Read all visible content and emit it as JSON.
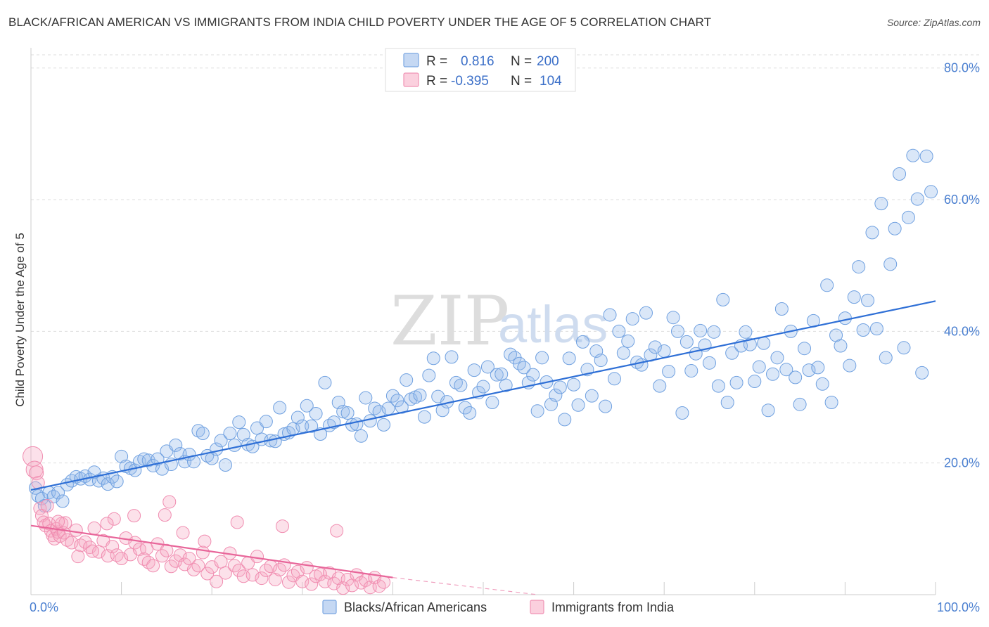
{
  "title": "BLACK/AFRICAN AMERICAN VS IMMIGRANTS FROM INDIA CHILD POVERTY UNDER THE AGE OF 5 CORRELATION CHART",
  "source": "Source: ZipAtlas.com",
  "watermark": {
    "zip": "ZIP",
    "atlas": "atlas"
  },
  "legend": {
    "rows": [
      {
        "r_label": "R =",
        "r_value": "0.816",
        "n_label": "N =",
        "n_value": "200",
        "color": "#6fa0e0"
      },
      {
        "r_label": "R =",
        "r_value": "-0.395",
        "n_label": "N =",
        "n_value": "104",
        "color": "#f08cb0"
      }
    ]
  },
  "chart_data": {
    "type": "scatter",
    "xlabel": "",
    "ylabel": "Child Poverty Under the Age of 5",
    "x_tick_labels": {
      "left": "0.0%",
      "right": "100.0%"
    },
    "y_tick_labels": [
      "20.0%",
      "40.0%",
      "60.0%",
      "80.0%"
    ],
    "y_ticks": [
      20,
      40,
      60,
      80
    ],
    "xlim": [
      0,
      100
    ],
    "ylim": [
      0,
      82
    ],
    "grid": true,
    "legend_position": "top-center",
    "series": [
      {
        "name": "Blacks/African Americans",
        "color": "#6fa0e0",
        "trend": {
          "x": [
            0,
            100
          ],
          "y": [
            15.9,
            44.6
          ]
        },
        "points": [
          [
            0.5,
            16.2
          ],
          [
            0.8,
            15.0
          ],
          [
            1.2,
            14.6
          ],
          [
            1.5,
            13.5
          ],
          [
            2.0,
            15.5
          ],
          [
            2.5,
            14.9
          ],
          [
            3.0,
            15.5
          ],
          [
            3.5,
            14.2
          ],
          [
            4.0,
            16.7
          ],
          [
            4.5,
            17.3
          ],
          [
            5.0,
            17.9
          ],
          [
            5.5,
            17.6
          ],
          [
            6.0,
            18.0
          ],
          [
            6.5,
            17.5
          ],
          [
            7.0,
            18.6
          ],
          [
            7.5,
            17.3
          ],
          [
            8.0,
            17.7
          ],
          [
            8.5,
            16.8
          ],
          [
            9.0,
            17.9
          ],
          [
            9.5,
            17.2
          ],
          [
            10.0,
            21.0
          ],
          [
            10.5,
            19.5
          ],
          [
            11.0,
            19.2
          ],
          [
            11.5,
            18.9
          ],
          [
            12.0,
            20.2
          ],
          [
            12.5,
            20.6
          ],
          [
            13.0,
            20.4
          ],
          [
            13.5,
            19.6
          ],
          [
            14.0,
            20.6
          ],
          [
            14.5,
            19.1
          ],
          [
            15.0,
            21.8
          ],
          [
            15.5,
            19.8
          ],
          [
            16.0,
            22.7
          ],
          [
            16.5,
            21.4
          ],
          [
            17.0,
            20.2
          ],
          [
            17.5,
            21.3
          ],
          [
            18.0,
            20.2
          ],
          [
            18.5,
            24.9
          ],
          [
            19.0,
            24.5
          ],
          [
            19.5,
            21.1
          ],
          [
            20.0,
            20.7
          ],
          [
            20.5,
            22.1
          ],
          [
            21.0,
            23.4
          ],
          [
            21.5,
            19.7
          ],
          [
            22.0,
            24.5
          ],
          [
            22.5,
            22.7
          ],
          [
            23.0,
            26.2
          ],
          [
            23.5,
            24.3
          ],
          [
            24.0,
            22.8
          ],
          [
            24.5,
            22.5
          ],
          [
            25.0,
            25.3
          ],
          [
            25.5,
            23.6
          ],
          [
            26.0,
            26.3
          ],
          [
            26.5,
            23.4
          ],
          [
            27.0,
            23.3
          ],
          [
            27.5,
            28.4
          ],
          [
            28.0,
            24.4
          ],
          [
            28.5,
            24.6
          ],
          [
            29.0,
            25.2
          ],
          [
            29.5,
            26.9
          ],
          [
            30.0,
            25.6
          ],
          [
            30.5,
            28.7
          ],
          [
            31.0,
            25.6
          ],
          [
            31.5,
            27.5
          ],
          [
            32.0,
            24.4
          ],
          [
            32.5,
            32.2
          ],
          [
            33.0,
            25.7
          ],
          [
            33.5,
            26.2
          ],
          [
            34.0,
            29.2
          ],
          [
            34.5,
            27.8
          ],
          [
            35.0,
            27.6
          ],
          [
            35.5,
            25.8
          ],
          [
            36.0,
            25.9
          ],
          [
            36.5,
            24.1
          ],
          [
            37.0,
            29.9
          ],
          [
            37.5,
            26.4
          ],
          [
            38.0,
            28.3
          ],
          [
            38.5,
            27.8
          ],
          [
            39.0,
            25.8
          ],
          [
            39.5,
            28.3
          ],
          [
            40.0,
            30.2
          ],
          [
            40.5,
            29.5
          ],
          [
            41.0,
            28.5
          ],
          [
            41.5,
            32.6
          ],
          [
            42.0,
            29.7
          ],
          [
            42.5,
            30.0
          ],
          [
            43.0,
            30.3
          ],
          [
            43.5,
            27.0
          ],
          [
            44.0,
            33.3
          ],
          [
            44.5,
            35.9
          ],
          [
            45.0,
            30.1
          ],
          [
            45.5,
            28.0
          ],
          [
            46.0,
            29.3
          ],
          [
            46.5,
            36.1
          ],
          [
            47.0,
            32.2
          ],
          [
            47.5,
            31.8
          ],
          [
            48.0,
            28.4
          ],
          [
            48.5,
            27.6
          ],
          [
            49.0,
            34.1
          ],
          [
            49.5,
            30.7
          ],
          [
            50.0,
            31.6
          ],
          [
            50.5,
            34.6
          ],
          [
            51.0,
            29.2
          ],
          [
            51.5,
            33.4
          ],
          [
            52.0,
            33.5
          ],
          [
            52.5,
            31.8
          ],
          [
            53.0,
            36.5
          ],
          [
            53.5,
            36.0
          ],
          [
            54.0,
            35.1
          ],
          [
            54.5,
            34.5
          ],
          [
            55.0,
            32.2
          ],
          [
            55.5,
            33.4
          ],
          [
            56.0,
            27.9
          ],
          [
            56.5,
            36.0
          ],
          [
            57.0,
            32.3
          ],
          [
            57.5,
            28.9
          ],
          [
            58.0,
            30.3
          ],
          [
            58.5,
            31.5
          ],
          [
            59.0,
            26.6
          ],
          [
            59.5,
            35.9
          ],
          [
            60.0,
            31.9
          ],
          [
            60.5,
            28.8
          ],
          [
            61.0,
            38.4
          ],
          [
            61.5,
            34.2
          ],
          [
            62.0,
            30.2
          ],
          [
            62.5,
            37.0
          ],
          [
            63.0,
            35.6
          ],
          [
            63.5,
            28.6
          ],
          [
            64.0,
            42.5
          ],
          [
            64.5,
            32.8
          ],
          [
            65.0,
            40.0
          ],
          [
            65.5,
            36.7
          ],
          [
            66.0,
            38.5
          ],
          [
            66.5,
            41.9
          ],
          [
            67.0,
            35.3
          ],
          [
            67.5,
            34.9
          ],
          [
            68.0,
            42.8
          ],
          [
            68.5,
            36.4
          ],
          [
            69.0,
            37.6
          ],
          [
            69.5,
            31.7
          ],
          [
            70.0,
            37.0
          ],
          [
            70.5,
            33.9
          ],
          [
            71.0,
            42.1
          ],
          [
            71.5,
            40.0
          ],
          [
            72.0,
            27.6
          ],
          [
            72.5,
            38.4
          ],
          [
            73.0,
            34.0
          ],
          [
            73.5,
            36.6
          ],
          [
            74.0,
            40.1
          ],
          [
            74.5,
            37.9
          ],
          [
            75.0,
            35.2
          ],
          [
            75.5,
            39.9
          ],
          [
            76.0,
            31.7
          ],
          [
            76.5,
            44.8
          ],
          [
            77.0,
            29.2
          ],
          [
            77.5,
            36.7
          ],
          [
            78.0,
            32.2
          ],
          [
            78.5,
            37.8
          ],
          [
            79.0,
            39.9
          ],
          [
            79.5,
            38.0
          ],
          [
            80.0,
            32.4
          ],
          [
            80.5,
            34.6
          ],
          [
            81.0,
            38.2
          ],
          [
            81.5,
            28.0
          ],
          [
            82.0,
            33.5
          ],
          [
            82.5,
            36.0
          ],
          [
            83.0,
            43.4
          ],
          [
            83.5,
            34.2
          ],
          [
            84.0,
            40.0
          ],
          [
            84.5,
            33.0
          ],
          [
            85.0,
            28.9
          ],
          [
            85.5,
            37.4
          ],
          [
            86.0,
            34.1
          ],
          [
            86.5,
            41.6
          ],
          [
            87.0,
            34.5
          ],
          [
            87.5,
            32.0
          ],
          [
            88.0,
            47.0
          ],
          [
            88.5,
            29.2
          ],
          [
            89.0,
            39.4
          ],
          [
            89.5,
            37.8
          ],
          [
            90.0,
            42.0
          ],
          [
            90.5,
            34.8
          ],
          [
            91.0,
            45.2
          ],
          [
            91.5,
            49.8
          ],
          [
            92.0,
            40.2
          ],
          [
            92.5,
            44.7
          ],
          [
            93.0,
            55.0
          ],
          [
            93.5,
            40.4
          ],
          [
            94.0,
            59.4
          ],
          [
            94.5,
            36.0
          ],
          [
            95.0,
            50.2
          ],
          [
            95.5,
            55.6
          ],
          [
            96.0,
            63.9
          ],
          [
            96.5,
            37.5
          ],
          [
            97.0,
            57.3
          ],
          [
            97.5,
            66.7
          ],
          [
            98.0,
            60.1
          ],
          [
            98.5,
            33.7
          ],
          [
            99.0,
            66.6
          ],
          [
            99.5,
            61.2
          ]
        ]
      },
      {
        "name": "Immigrants from India",
        "color": "#f08cb0",
        "trend": {
          "x": [
            0,
            40
          ],
          "y": [
            10.5,
            2.6
          ]
        },
        "trend_dashed": {
          "x": [
            40,
            56
          ],
          "y": [
            2.6,
            0.0
          ]
        },
        "points": [
          [
            0.2,
            21.0
          ],
          [
            0.4,
            19.0
          ],
          [
            0.6,
            18.5
          ],
          [
            0.8,
            17.0
          ],
          [
            1.0,
            13.1
          ],
          [
            1.2,
            12.0
          ],
          [
            1.4,
            11.0
          ],
          [
            1.6,
            10.5
          ],
          [
            1.8,
            13.5
          ],
          [
            2.0,
            10.8
          ],
          [
            2.2,
            9.7
          ],
          [
            2.4,
            9.0
          ],
          [
            2.6,
            8.5
          ],
          [
            2.8,
            10.0
          ],
          [
            3.0,
            9.5
          ],
          [
            3.2,
            8.9
          ],
          [
            3.4,
            10.8
          ],
          [
            3.6,
            9.4
          ],
          [
            3.8,
            10.9
          ],
          [
            4.0,
            8.3
          ],
          [
            4.5,
            7.9
          ],
          [
            5.0,
            9.8
          ],
          [
            5.5,
            7.5
          ],
          [
            6.0,
            8.0
          ],
          [
            6.5,
            7.2
          ],
          [
            7.0,
            10.1
          ],
          [
            7.5,
            6.5
          ],
          [
            8.0,
            8.2
          ],
          [
            8.5,
            5.9
          ],
          [
            9.0,
            7.3
          ],
          [
            9.5,
            6.0
          ],
          [
            10.0,
            5.5
          ],
          [
            10.5,
            8.6
          ],
          [
            11.0,
            6.1
          ],
          [
            11.5,
            7.9
          ],
          [
            12.0,
            6.9
          ],
          [
            12.5,
            5.4
          ],
          [
            13.0,
            4.9
          ],
          [
            13.5,
            4.4
          ],
          [
            14.0,
            7.7
          ],
          [
            14.5,
            5.9
          ],
          [
            15.0,
            6.7
          ],
          [
            15.5,
            4.3
          ],
          [
            16.0,
            5.1
          ],
          [
            16.5,
            6.0
          ],
          [
            17.0,
            4.6
          ],
          [
            17.5,
            5.5
          ],
          [
            18.0,
            3.8
          ],
          [
            18.5,
            4.4
          ],
          [
            19.0,
            6.4
          ],
          [
            19.5,
            3.2
          ],
          [
            20.0,
            4.2
          ],
          [
            20.5,
            2.0
          ],
          [
            21.0,
            5.0
          ],
          [
            21.5,
            3.3
          ],
          [
            22.0,
            6.3
          ],
          [
            22.5,
            4.4
          ],
          [
            23.0,
            3.7
          ],
          [
            23.5,
            2.8
          ],
          [
            24.0,
            4.8
          ],
          [
            24.5,
            3.0
          ],
          [
            25.0,
            5.8
          ],
          [
            25.5,
            2.5
          ],
          [
            26.0,
            3.7
          ],
          [
            26.5,
            4.3
          ],
          [
            27.0,
            2.3
          ],
          [
            27.5,
            3.8
          ],
          [
            28.0,
            4.5
          ],
          [
            28.5,
            1.9
          ],
          [
            29.0,
            2.9
          ],
          [
            29.5,
            3.5
          ],
          [
            30.0,
            2.0
          ],
          [
            30.5,
            4.1
          ],
          [
            31.0,
            1.6
          ],
          [
            31.5,
            2.8
          ],
          [
            32.0,
            3.1
          ],
          [
            32.5,
            2.0
          ],
          [
            33.0,
            3.3
          ],
          [
            33.5,
            1.7
          ],
          [
            34.0,
            2.5
          ],
          [
            34.5,
            1.0
          ],
          [
            35.0,
            2.3
          ],
          [
            35.5,
            1.4
          ],
          [
            36.0,
            3.0
          ],
          [
            36.5,
            1.8
          ],
          [
            37.0,
            2.2
          ],
          [
            37.5,
            1.1
          ],
          [
            38.0,
            2.6
          ],
          [
            38.5,
            1.3
          ],
          [
            39.0,
            1.9
          ],
          [
            5.2,
            5.8
          ],
          [
            6.8,
            6.6
          ],
          [
            9.2,
            11.5
          ],
          [
            12.8,
            7.0
          ],
          [
            14.8,
            12.1
          ],
          [
            16.8,
            9.4
          ],
          [
            19.2,
            8.1
          ],
          [
            22.8,
            11.0
          ],
          [
            27.8,
            10.4
          ],
          [
            33.8,
            9.7
          ],
          [
            15.3,
            14.1
          ],
          [
            11.4,
            12.0
          ],
          [
            3.0,
            11.1
          ],
          [
            8.4,
            10.8
          ]
        ]
      }
    ]
  }
}
